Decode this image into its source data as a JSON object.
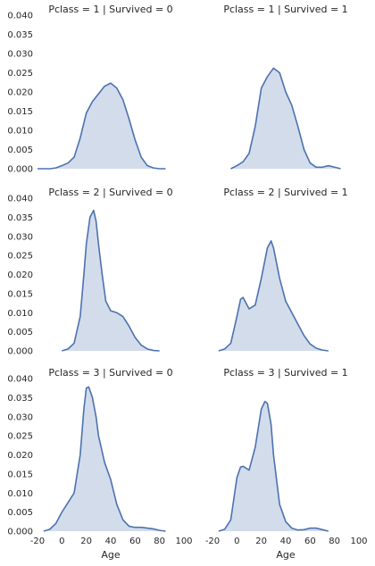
{
  "chart_data": {
    "type": "area",
    "x_label": "Age",
    "xlim": [
      -20,
      100
    ],
    "ylim": [
      0,
      0.04
    ],
    "x_ticks": [
      -20,
      0,
      20,
      40,
      60,
      80,
      100
    ],
    "y_ticks": [
      0.0,
      0.005,
      0.01,
      0.015,
      0.02,
      0.025,
      0.03,
      0.035,
      0.04
    ],
    "y_tick_labels": [
      "0.000",
      "0.005",
      "0.010",
      "0.015",
      "0.020",
      "0.025",
      "0.030",
      "0.035",
      "0.040"
    ],
    "grid": false,
    "colors": {
      "line": "#4c72b0",
      "fill": "#4c72b0",
      "fill_opacity": 0.25
    },
    "facets": [
      {
        "title": "Pclass = 1 | Survived = 0",
        "x": [
          -20,
          -10,
          -5,
          0,
          5,
          10,
          15,
          20,
          25,
          30,
          35,
          40,
          45,
          50,
          55,
          60,
          65,
          70,
          75,
          80,
          85
        ],
        "y": [
          0.0,
          0.0,
          0.0002,
          0.0008,
          0.0015,
          0.003,
          0.008,
          0.0145,
          0.0175,
          0.0195,
          0.0215,
          0.0223,
          0.021,
          0.018,
          0.013,
          0.0075,
          0.003,
          0.0008,
          0.0002,
          0.0,
          0.0
        ]
      },
      {
        "title": "Pclass = 1 | Survived = 1",
        "x": [
          -5,
          0,
          5,
          10,
          15,
          20,
          25,
          30,
          35,
          40,
          45,
          50,
          55,
          60,
          65,
          70,
          75,
          80,
          85
        ],
        "y": [
          0.0,
          0.0008,
          0.0018,
          0.004,
          0.011,
          0.021,
          0.024,
          0.0262,
          0.025,
          0.02,
          0.0165,
          0.011,
          0.005,
          0.0015,
          0.0004,
          0.0004,
          0.0008,
          0.0004,
          0.0
        ]
      },
      {
        "title": "Pclass = 2 | Survived = 0",
        "x": [
          0,
          5,
          10,
          15,
          18,
          20,
          23,
          26,
          28,
          30,
          33,
          36,
          40,
          45,
          50,
          55,
          60,
          65,
          70,
          75,
          80
        ],
        "y": [
          0.0,
          0.0005,
          0.002,
          0.009,
          0.02,
          0.028,
          0.035,
          0.0368,
          0.034,
          0.028,
          0.02,
          0.013,
          0.0105,
          0.01,
          0.009,
          0.0065,
          0.0035,
          0.0015,
          0.0005,
          0.0001,
          0.0
        ]
      },
      {
        "title": "Pclass = 2 | Survived = 1",
        "x": [
          -15,
          -10,
          -5,
          0,
          3,
          5,
          10,
          15,
          20,
          25,
          28,
          30,
          35,
          40,
          45,
          50,
          55,
          60,
          65,
          70,
          75
        ],
        "y": [
          0.0,
          0.0005,
          0.002,
          0.009,
          0.0135,
          0.014,
          0.011,
          0.012,
          0.019,
          0.027,
          0.0288,
          0.027,
          0.019,
          0.013,
          0.01,
          0.007,
          0.004,
          0.0018,
          0.0007,
          0.0002,
          0.0
        ]
      },
      {
        "title": "Pclass = 3 | Survived = 0",
        "x": [
          -15,
          -10,
          -5,
          0,
          5,
          10,
          15,
          18,
          20,
          22,
          25,
          28,
          30,
          35,
          40,
          45,
          50,
          55,
          60,
          65,
          70,
          75,
          80,
          85
        ],
        "y": [
          0.0,
          0.0005,
          0.002,
          0.005,
          0.0075,
          0.01,
          0.02,
          0.032,
          0.0375,
          0.0378,
          0.035,
          0.03,
          0.025,
          0.018,
          0.0135,
          0.007,
          0.003,
          0.0013,
          0.001,
          0.001,
          0.0008,
          0.0006,
          0.0002,
          0.0
        ]
      },
      {
        "title": "Pclass = 3 | Survived = 1",
        "x": [
          -15,
          -10,
          -5,
          0,
          3,
          5,
          10,
          15,
          20,
          23,
          25,
          28,
          30,
          35,
          40,
          45,
          50,
          55,
          60,
          65,
          70,
          75
        ],
        "y": [
          0.0,
          0.0005,
          0.003,
          0.014,
          0.0168,
          0.017,
          0.016,
          0.022,
          0.032,
          0.034,
          0.0335,
          0.028,
          0.02,
          0.007,
          0.0025,
          0.0008,
          0.0003,
          0.0004,
          0.0008,
          0.0008,
          0.0004,
          0.0
        ]
      }
    ]
  }
}
